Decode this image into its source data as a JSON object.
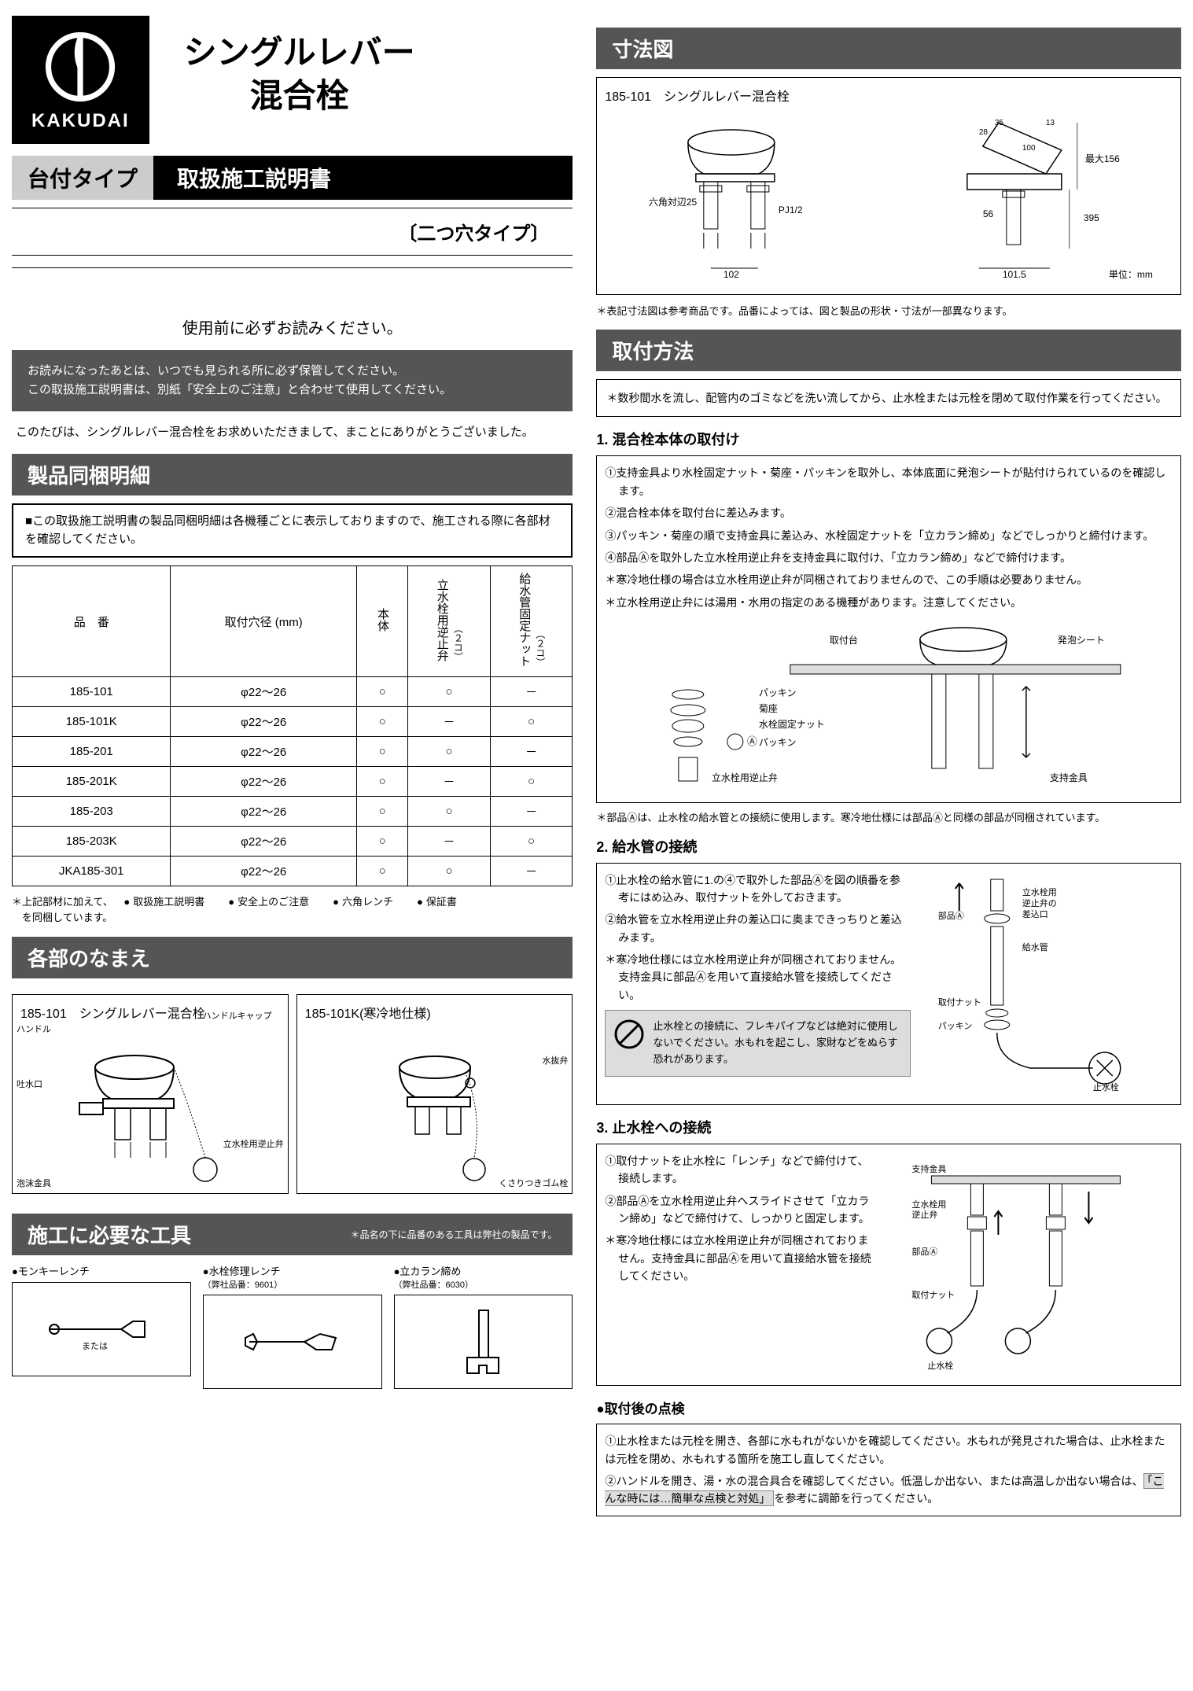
{
  "brand": "KAKUDAI",
  "main_title_1": "シングルレバー",
  "main_title_2": "混合栓",
  "mount_type": "台付タイプ",
  "doc_type": "取扱施工説明書",
  "hole_type": "〔二つ穴タイプ〕",
  "pre_read": "使用前に必ずお読みください。",
  "note_box_1": "お読みになったあとは、いつでも見られる所に必ず保管してください。",
  "note_box_2": "この取扱施工説明書は、別紙「安全上のご注意」と合わせて使用してください。",
  "thanks": "このたびは、シングルレバー混合栓をお求めいただきまして、まことにありがとうございました。",
  "sec_parts": "製品同梱明細",
  "parts_note": "■この取扱施工説明書の製品同梱明細は各機種ごとに表示しておりますので、施工される際に各部材を確認してください。",
  "parts_table": {
    "headers": {
      "model": "品　番",
      "hole": "取付穴径\n(mm)",
      "body": "本体",
      "valve": "立水栓用逆止弁",
      "valve_qty": "（２コ）",
      "nut": "給水管固定ナット",
      "nut_qty": "（２コ）"
    },
    "rows": [
      {
        "model": "185-101",
        "hole": "φ22～26",
        "body": "○",
        "valve": "○",
        "nut": "－"
      },
      {
        "model": "185-101K",
        "hole": "φ22～26",
        "body": "○",
        "valve": "－",
        "nut": "○"
      },
      {
        "model": "185-201",
        "hole": "φ22～26",
        "body": "○",
        "valve": "○",
        "nut": "－"
      },
      {
        "model": "185-201K",
        "hole": "φ22～26",
        "body": "○",
        "valve": "－",
        "nut": "○"
      },
      {
        "model": "185-203",
        "hole": "φ22～26",
        "body": "○",
        "valve": "○",
        "nut": "－"
      },
      {
        "model": "185-203K",
        "hole": "φ22～26",
        "body": "○",
        "valve": "－",
        "nut": "○"
      },
      {
        "model": "JKA185-301",
        "hole": "φ22～26",
        "body": "○",
        "valve": "○",
        "nut": "－"
      }
    ]
  },
  "parts_footnote_1": "＊上記部材に加えて、",
  "parts_footnote_items": [
    "取扱施工説明書",
    "安全上のご注意",
    "六角レンチ",
    "保証書"
  ],
  "parts_footnote_2": "　を同梱しています。",
  "sec_names": "各部のなまえ",
  "names_model_1": "185-101　シングルレバー混合栓",
  "names_model_2": "185-101K(寒冷地仕様)",
  "labels_1": {
    "handle": "ハンドル",
    "cap": "ハンドルキャップ",
    "spout": "吐水口",
    "aerator": "泡沫金具",
    "valve": "立水栓用逆止弁"
  },
  "labels_2": {
    "drain": "水抜弁",
    "rubber": "くさりつきゴム栓"
  },
  "sec_tools": "施工に必要な工具",
  "tools_note": "＊品名の下に品番のある工具は弊社の製品です。",
  "tools": [
    {
      "name": "●モンキーレンチ",
      "sub": ""
    },
    {
      "name": "●水栓修理レンチ",
      "sub": "（弊社品番：9601）"
    },
    {
      "name": "●立カラン締め",
      "sub": "（弊社品番：6030）"
    }
  ],
  "or_text": "または",
  "sec_dims": "寸法図",
  "dims_model": "185-101　シングルレバー混合栓",
  "dims": {
    "hex": "六角対辺25",
    "pj": "PJ1/2",
    "w102": "102",
    "max156": "最大156",
    "h395": "395",
    "h56": "56",
    "w1015": "101.5",
    "a28": "28",
    "a35": "35",
    "a13": "13",
    "a100": "100",
    "unit": "単位：mm"
  },
  "dims_note": "＊表記寸法図は参考商品です。品番によっては、図と製品の形状・寸法が一部異なります。",
  "sec_install": "取付方法",
  "install_pre": "＊数秒間水を流し、配管内のゴミなどを洗い流してから、止水栓または元栓を閉めて取付作業を行ってください。",
  "install_1_title": "1. 混合栓本体の取付け",
  "install_1_steps": [
    "①支持金具より水栓固定ナット・菊座・パッキンを取外し、本体底面に発泡シートが貼付けられているのを確認します。",
    "②混合栓本体を取付台に差込みます。",
    "③パッキン・菊座の順で支持金具に差込み、水栓固定ナットを「立カラン締め」などでしっかりと締付けます。",
    "④部品Ⓐを取外した立水栓用逆止弁を支持金具に取付け、「立カラン締め」などで締付けます。",
    "＊寒冷地仕様の場合は立水栓用逆止弁が同梱されておりませんので、この手順は必要ありません。",
    "＊立水栓用逆止弁には湯用・水用の指定のある機種があります。注意してください。"
  ],
  "install_1_labels": {
    "mount": "取付台",
    "foam": "発泡シート",
    "packing": "パッキン",
    "kiku": "菊座",
    "nut": "水栓固定ナット",
    "partA": "Ⓐ",
    "valve": "立水栓用逆止弁",
    "bracket": "支持金具"
  },
  "install_1_foot": "＊部品Ⓐは、止水栓の給水管との接続に使用します。寒冷地仕様には部品Ⓐと同様の部品が同梱されています。",
  "install_2_title": "2. 給水管の接続",
  "install_2_steps": [
    "①止水栓の給水管に1.の④で取外した部品Ⓐを図の順番を参考にはめ込み、取付ナットを外しておきます。",
    "②給水管を立水栓用逆止弁の差込口に奥まできっちりと差込みます。",
    "＊寒冷地仕様には立水栓用逆止弁が同梱されておりません。支持金具に部品Ⓐを用いて直接給水管を接続してください。"
  ],
  "install_2_labels": {
    "partA": "部品Ⓐ",
    "inlet": "立水栓用逆止弁の差込口",
    "pipe": "給水管",
    "nut": "取付ナット",
    "packing": "パッキン",
    "stop": "止水栓"
  },
  "prohibit_text": "止水栓との接続に、フレキパイプなどは絶対に使用しないでください。水もれを起こし、家財などをぬらす恐れがあります。",
  "install_3_title": "3. 止水栓への接続",
  "install_3_steps": [
    "①取付ナットを止水栓に「レンチ」などで締付けて、接続します。",
    "②部品Ⓐを立水栓用逆止弁へスライドさせて「立カラン締め」などで締付けて、しっかりと固定します。",
    "＊寒冷地仕様には立水栓用逆止弁が同梱されておりません。支持金具に部品Ⓐを用いて直接給水管を接続してください。"
  ],
  "install_3_labels": {
    "bracket": "支持金具",
    "valve": "立水栓用逆止弁",
    "partA": "部品Ⓐ",
    "nut": "取付ナット",
    "stop": "止水栓"
  },
  "check_title": "●取付後の点検",
  "check_1": "①止水栓または元栓を開き、各部に水もれがないかを確認してください。水もれが発見された場合は、止水栓または元栓を閉め、水もれする箇所を施工し直してください。",
  "check_2_a": "②ハンドルを開き、湯・水の混合具合を確認してください。低温しか出ない、または高温しか出ない場合は、",
  "check_2_b": "「こんな時には…簡単な点検と対処」",
  "check_2_c": "を参考に調節を行ってください。"
}
